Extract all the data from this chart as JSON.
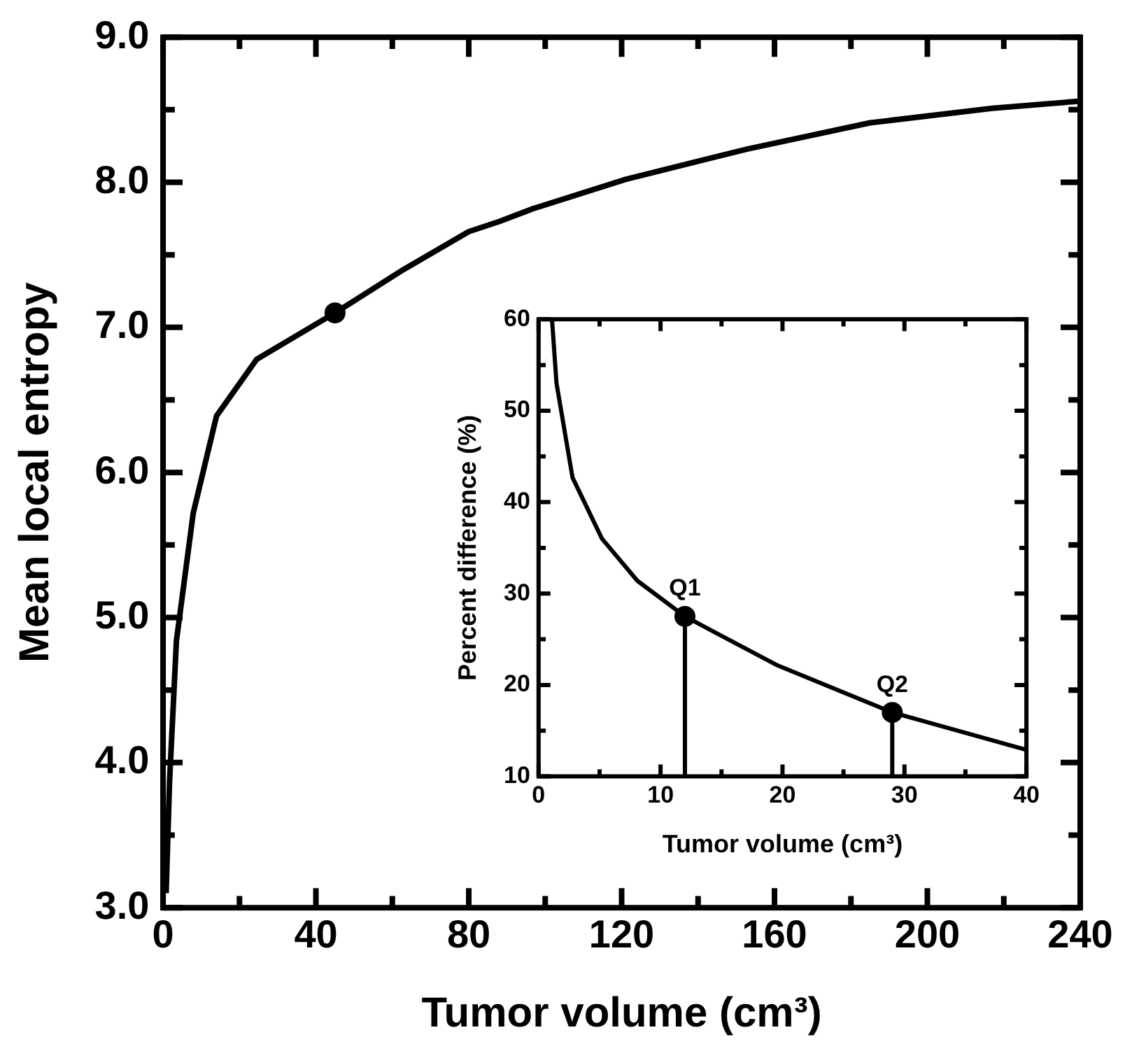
{
  "chart_data": [
    {
      "type": "line",
      "xlabel": "Tumor volume (cm³)",
      "ylabel": "Mean local entropy",
      "xlim": [
        0,
        240
      ],
      "ylim": [
        3,
        9
      ],
      "xticks": [
        0,
        {
          "value": 20,
          "label": null
        },
        40,
        {
          "value": 60,
          "label": null
        },
        80,
        {
          "value": 100,
          "label": null
        },
        120,
        {
          "value": 140,
          "label": null
        },
        160,
        {
          "value": 180,
          "label": null
        },
        200,
        {
          "value": 220,
          "label": null
        },
        240
      ],
      "yticks": [
        {
          "value": 3,
          "label": "3.0"
        },
        {
          "value": 3.5,
          "label": null
        },
        {
          "value": 4,
          "label": "4.0"
        },
        {
          "value": 4.5,
          "label": null
        },
        {
          "value": 5,
          "label": "5.0"
        },
        {
          "value": 5.5,
          "label": null
        },
        {
          "value": 6,
          "label": "6.0"
        },
        {
          "value": 6.5,
          "label": null
        },
        {
          "value": 7,
          "label": "7.0"
        },
        {
          "value": 7.5,
          "label": null
        },
        {
          "value": 8,
          "label": "8.0"
        },
        {
          "value": 8.5,
          "label": null
        },
        {
          "value": 9,
          "label": "9.0"
        }
      ],
      "grid": false,
      "legend": false,
      "series": [
        {
          "type": "line",
          "color": "#000000",
          "marker": "none",
          "x": [
            0.8,
            1.7,
            3.5,
            7.9,
            14,
            24.5,
            45,
            63,
            80,
            88,
            97,
            121,
            153,
            185,
            217,
            240
          ],
          "values": [
            3.1,
            3.87,
            4.84,
            5.72,
            6.39,
            6.78,
            7.1,
            7.4,
            7.66,
            7.73,
            7.82,
            8.02,
            8.23,
            8.41,
            8.51,
            8.56
          ]
        },
        {
          "type": "scatter",
          "color": "#000000",
          "marker": "circle",
          "x": [
            45
          ],
          "values": [
            7.1
          ]
        }
      ]
    },
    {
      "type": "line",
      "xlabel": "Tumor volume (cm³)",
      "ylabel": "Percent difference (%)",
      "xlim": [
        0,
        40
      ],
      "ylim": [
        10,
        60
      ],
      "xticks": [
        0,
        {
          "value": 5,
          "label": null
        },
        10,
        {
          "value": 15,
          "label": null
        },
        20,
        {
          "value": 25,
          "label": null
        },
        30,
        {
          "value": 35,
          "label": null
        },
        40
      ],
      "yticks": [
        10,
        {
          "value": 15,
          "label": null
        },
        20,
        {
          "value": 25,
          "label": null
        },
        30,
        {
          "value": 35,
          "label": null
        },
        40,
        {
          "value": 45,
          "label": null
        },
        50,
        {
          "value": 55,
          "label": null
        },
        60
      ],
      "grid": false,
      "legend": false,
      "annotations": [
        {
          "text": "Q1",
          "x": 12,
          "y": 27.5
        },
        {
          "text": "Q2",
          "x": 29,
          "y": 17
        }
      ],
      "series": [
        {
          "type": "line",
          "color": "#000000",
          "marker": "none",
          "x": [
            1.1,
            1.47,
            2.78,
            5.2,
            8.1,
            12,
            19.5,
            29,
            40
          ],
          "values": [
            60,
            53,
            42.7,
            36,
            31.4,
            27.5,
            22.2,
            17,
            12.9
          ]
        },
        {
          "type": "lollipop",
          "color": "#000000",
          "marker": "circle",
          "x": [
            12,
            29
          ],
          "values": [
            27.5,
            17
          ]
        }
      ]
    }
  ]
}
